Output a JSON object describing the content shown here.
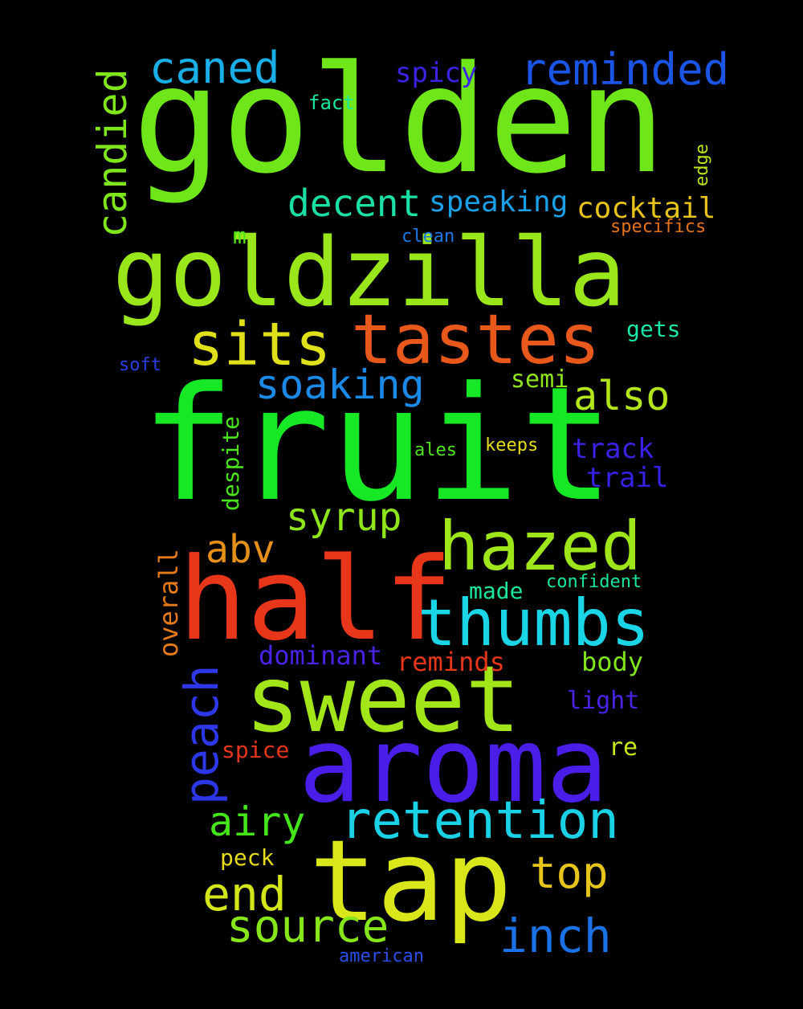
{
  "words": {
    "fruit": {
      "text": "fruit",
      "color": "#16e826"
    },
    "golden": {
      "text": "golden",
      "color": "#6ee61a"
    },
    "goldzilla": {
      "text": "goldzilla",
      "color": "#99e61a"
    },
    "half": {
      "text": "half",
      "color": "#e8361a"
    },
    "aroma": {
      "text": "aroma",
      "color": "#4a1ee8"
    },
    "sweet": {
      "text": "sweet",
      "color": "#a2e61a"
    },
    "tap": {
      "text": "tap",
      "color": "#d9e61a"
    },
    "tastes": {
      "text": "tastes",
      "color": "#e8581a"
    },
    "thumbs": {
      "text": "thumbs",
      "color": "#1ad5e6"
    },
    "hazed": {
      "text": "hazed",
      "color": "#9ee61a"
    },
    "retention": {
      "text": "retention",
      "color": "#1ad1e6"
    },
    "sits": {
      "text": "sits",
      "color": "#e0e01a"
    },
    "reminded": {
      "text": "reminded",
      "color": "#1a55e6"
    },
    "caned": {
      "text": "caned",
      "color": "#1aaee6"
    },
    "candied": {
      "text": "candied",
      "color": "#7ee61a"
    },
    "decent": {
      "text": "decent",
      "color": "#1ae0a6"
    },
    "soaking": {
      "text": "soaking",
      "color": "#1a8ae6"
    },
    "also": {
      "text": "also",
      "color": "#b2e61a"
    },
    "syrup": {
      "text": "syrup",
      "color": "#8ee61a"
    },
    "peach": {
      "text": "peach",
      "color": "#2c38e8"
    },
    "airy": {
      "text": "airy",
      "color": "#44e61a"
    },
    "end": {
      "text": "end",
      "color": "#d2e61a"
    },
    "source": {
      "text": "source",
      "color": "#86e61a"
    },
    "inch": {
      "text": "inch",
      "color": "#1a72e6"
    },
    "top": {
      "text": "top",
      "color": "#e6c41a"
    },
    "abv": {
      "text": "abv",
      "color": "#e6901a"
    },
    "speaking": {
      "text": "speaking",
      "color": "#1aa0e6"
    },
    "cocktail": {
      "text": "cocktail",
      "color": "#e6c21a"
    },
    "spicy": {
      "text": "spicy",
      "color": "#3a22e6"
    },
    "fact": {
      "text": "fact",
      "color": "#1ae6a0"
    },
    "edge": {
      "text": "edge",
      "color": "#bce61a"
    },
    "m": {
      "text": "m",
      "color": "#52e61a"
    },
    "clean": {
      "text": "clean",
      "color": "#1a78e6"
    },
    "specifics": {
      "text": "specifics",
      "color": "#e6721a"
    },
    "gets": {
      "text": "gets",
      "color": "#1ae6a8"
    },
    "soft": {
      "text": "soft",
      "color": "#2a3ee6"
    },
    "semi": {
      "text": "semi",
      "color": "#8ee61a"
    },
    "despite": {
      "text": "despite",
      "color": "#48e61a"
    },
    "track": {
      "text": "track",
      "color": "#3c22e6"
    },
    "trail": {
      "text": "trail",
      "color": "#3422e6"
    },
    "ales": {
      "text": "ales",
      "color": "#4ee61a"
    },
    "keeps": {
      "text": "keeps",
      "color": "#e6dc1a"
    },
    "overall": {
      "text": "overall",
      "color": "#e67a1a"
    },
    "made": {
      "text": "made",
      "color": "#1ae6a2"
    },
    "confident": {
      "text": "confident",
      "color": "#1ae6a0"
    },
    "dominant": {
      "text": "dominant",
      "color": "#4a22e6"
    },
    "reminds": {
      "text": "reminds",
      "color": "#e6361a"
    },
    "body": {
      "text": "body",
      "color": "#7ee61a"
    },
    "light": {
      "text": "light",
      "color": "#4a22e6"
    },
    "spice": {
      "text": "spice",
      "color": "#e6361a"
    },
    "re": {
      "text": "re",
      "color": "#c8e61a"
    },
    "peck": {
      "text": "peck",
      "color": "#e6dc1a"
    },
    "american": {
      "text": "american",
      "color": "#2a4ee6"
    }
  }
}
